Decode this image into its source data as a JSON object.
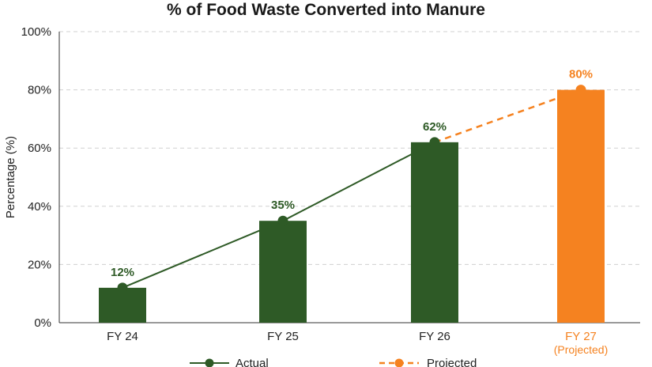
{
  "chart_data": {
    "type": "bar",
    "title": "% of Food Waste Converted into Manure",
    "xlabel": "",
    "ylabel": "Percentage (%)",
    "ylim": [
      0,
      100
    ],
    "yticks": [
      0,
      20,
      40,
      60,
      80,
      100
    ],
    "ytick_labels": [
      "0%",
      "20%",
      "40%",
      "60%",
      "80%",
      "100%"
    ],
    "grid": true,
    "categories": [
      "FY 24",
      "FY 25",
      "FY 26",
      "FY 27"
    ],
    "category_sublabels": [
      "",
      "",
      "",
      "(Projected)"
    ],
    "values": [
      12,
      35,
      62,
      80
    ],
    "value_labels": [
      "12%",
      "35%",
      "62%",
      "80%"
    ],
    "projected": [
      false,
      false,
      false,
      true
    ],
    "series": [
      {
        "name": "Actual",
        "style": "solid line with markers",
        "x": [
          "FY 24",
          "FY 25",
          "FY 26"
        ],
        "values": [
          12,
          35,
          62
        ]
      },
      {
        "name": "Projected",
        "style": "dashed line with markers",
        "x": [
          "FY 26",
          "FY 27"
        ],
        "values": [
          62,
          80
        ]
      }
    ],
    "legend": {
      "placement": "bottom-center",
      "entries": [
        "Actual",
        "Projected"
      ]
    },
    "colors": {
      "actual": "#2e5a26",
      "projected": "#f58220",
      "grid": "#d0d0d0",
      "axis": "#333333"
    }
  }
}
